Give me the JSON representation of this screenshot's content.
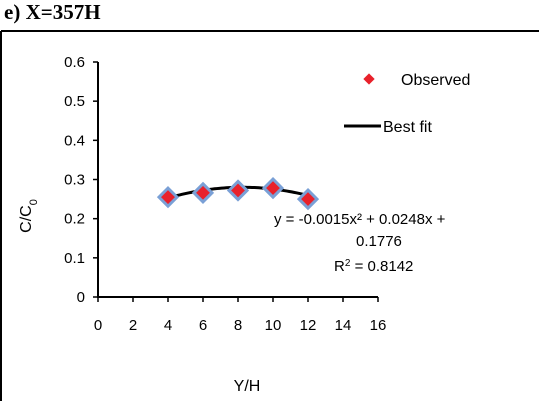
{
  "panel_label": "e)  X=357H",
  "chart_data": {
    "type": "scatter",
    "xlabel": "Y/H",
    "ylabel_main": "C/C",
    "ylabel_sub": "0",
    "xlim": [
      0,
      16
    ],
    "ylim": [
      0,
      0.6
    ],
    "x_ticks": [
      "0",
      "2",
      "4",
      "6",
      "8",
      "10",
      "12",
      "14",
      "16"
    ],
    "y_ticks": [
      "0",
      "0.1",
      "0.2",
      "0.3",
      "0.4",
      "0.5",
      "0.6"
    ],
    "grid": false,
    "legend_position": "top-right",
    "series": [
      {
        "name": "Observed",
        "kind": "points",
        "x": [
          4,
          6,
          8,
          10,
          12
        ],
        "y": [
          0.255,
          0.266,
          0.272,
          0.278,
          0.25
        ],
        "marker_color": "#e8212b",
        "marker_edge_color": "#7aa0d6"
      },
      {
        "name": "Best fit",
        "kind": "poly2",
        "coefficients": {
          "a": -0.0015,
          "b": 0.0248,
          "c": 0.1776
        },
        "x_range": [
          4,
          12
        ],
        "line_color": "#000000"
      }
    ],
    "annotation": {
      "line1": "y = -0.0015x² + 0.0248x +",
      "line2": "0.1776",
      "r2_label": "R",
      "r2_sup": "2",
      "r2_value": " = 0.8142"
    }
  }
}
